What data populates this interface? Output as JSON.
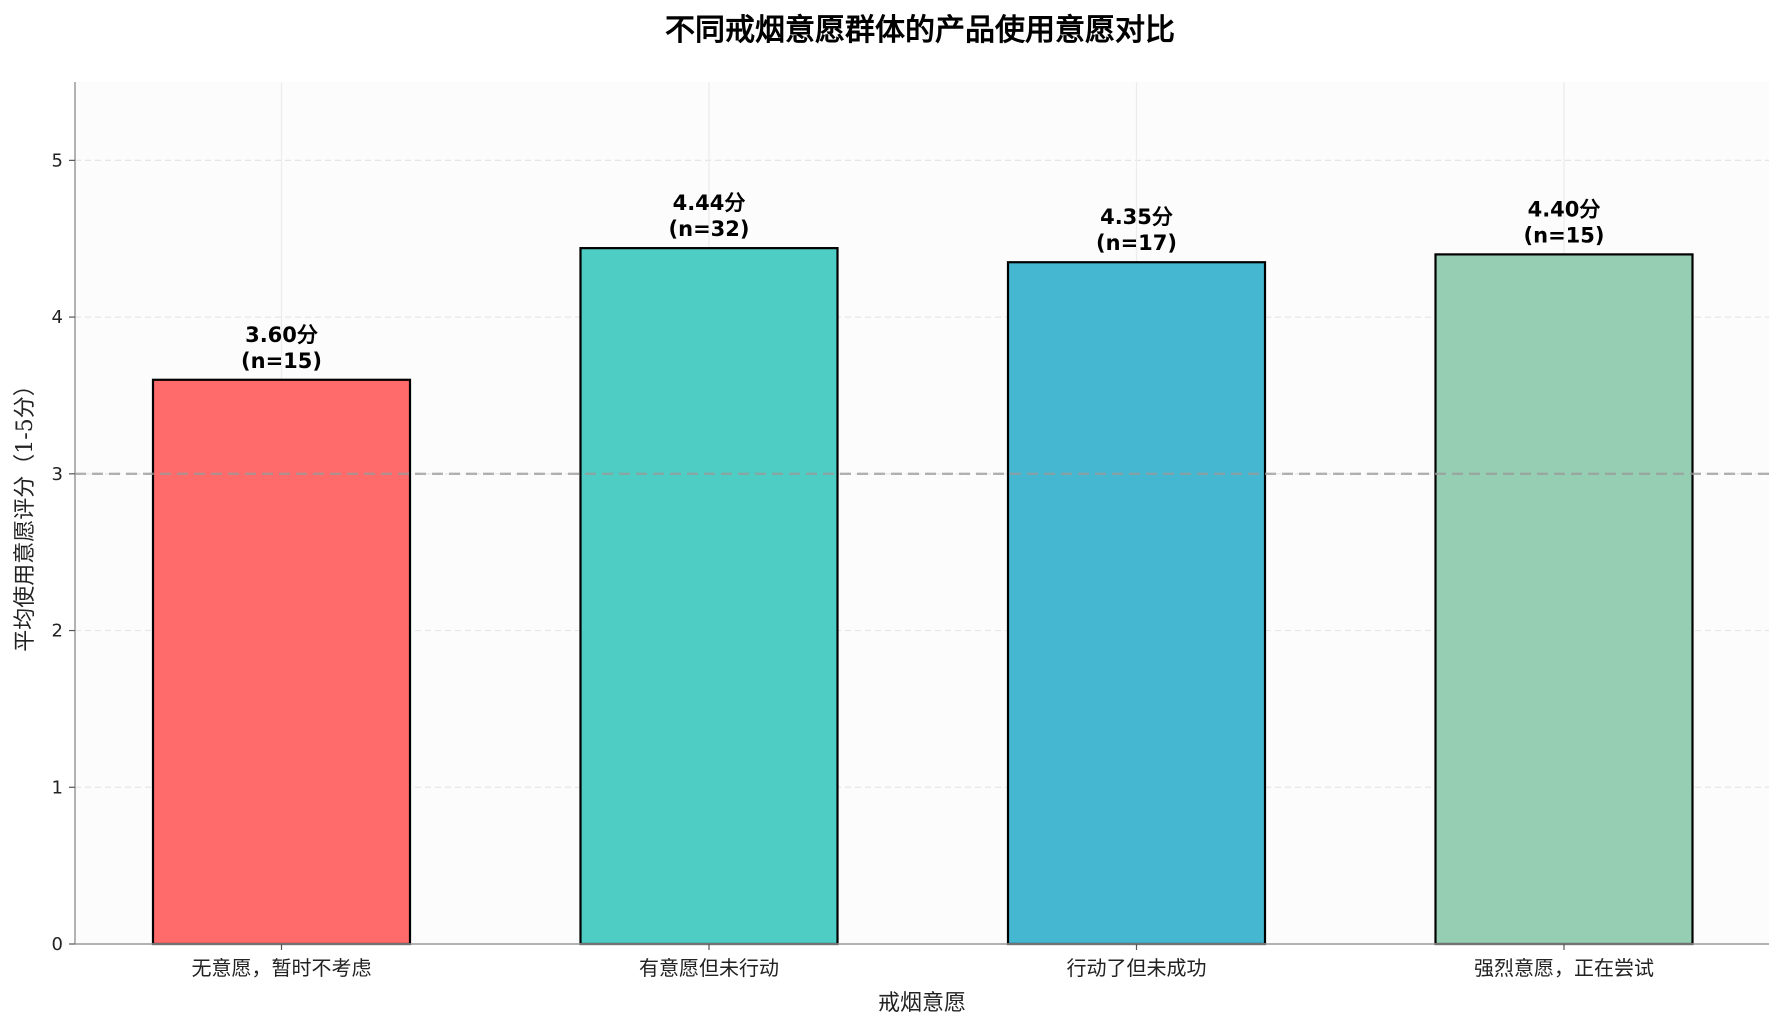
{
  "chart_data": {
    "type": "bar",
    "title": "不同戒烟意愿群体的产品使用意愿对比",
    "xlabel": "戒烟意愿",
    "ylabel": "平均使用意愿评分（1-5分）",
    "categories": [
      "无意愿，暂时不考虑",
      "有意愿但未行动",
      "行动了但未成功",
      "强烈意愿，正在尝试"
    ],
    "values": [
      3.6,
      4.44,
      4.35,
      4.4
    ],
    "value_labels": [
      "3.60分",
      "4.44分",
      "4.35分",
      "4.40分"
    ],
    "n_labels": [
      "(n=15)",
      "(n=32)",
      "(n=17)",
      "(n=15)"
    ],
    "colors": [
      "#ff6b6b",
      "#4ecdc4",
      "#45b7d1",
      "#96ceb4"
    ],
    "ylim": [
      0,
      5.5
    ],
    "yticks": [
      0,
      1,
      2,
      3,
      4,
      5
    ],
    "reference_line": 3,
    "grid": true
  }
}
